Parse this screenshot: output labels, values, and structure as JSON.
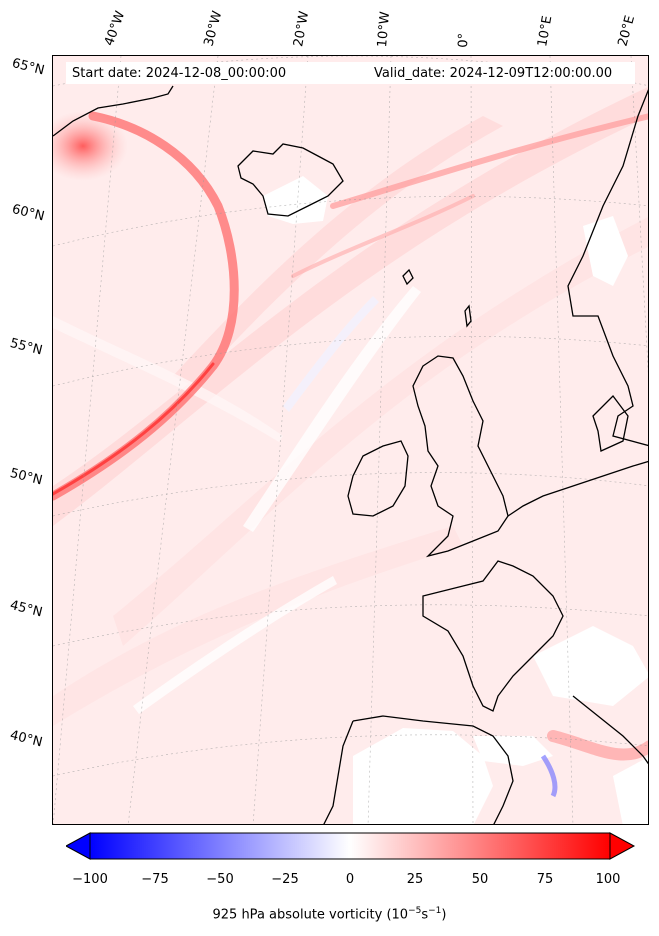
{
  "map": {
    "start_label": "Start date: 2024-12-08_00:00:00",
    "valid_label": "Valid_date: 2024-12-09T12:00:00.00",
    "longitude_labels": [
      "40°W",
      "30°W",
      "20°W",
      "10°W",
      "0°",
      "10°E",
      "20°E"
    ],
    "latitude_labels": [
      "65°N",
      "60°N",
      "55°N",
      "50°N",
      "45°N",
      "40°N"
    ],
    "field": "925 hPa absolute vorticity",
    "colors": {
      "land_outline": "#000000",
      "positive": "#ff0000",
      "negative": "#0000ff",
      "background": "#ffecec"
    }
  },
  "colorbar": {
    "ticks": [
      "−100",
      "−75",
      "−50",
      "−25",
      "0",
      "25",
      "50",
      "75",
      "100"
    ],
    "label": "925 hPa absolute vorticity (10",
    "label_exp1": "−5",
    "label_mid": "s",
    "label_exp2": "−1",
    "label_end": ")",
    "min": -100,
    "max": 100
  }
}
